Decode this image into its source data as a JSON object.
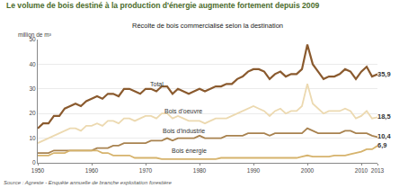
{
  "chart_data": {
    "type": "line",
    "title": "Le volume de bois destiné à la production d'énergie augmente fortement depuis 2009",
    "subtitle": "Récolte de bois commercialisé selon la destination",
    "ylabel": "million de m³",
    "source": "Source : Agreste - Enquête annuelle de branche exploitation forestière",
    "x": [
      1950,
      1951,
      1952,
      1953,
      1954,
      1955,
      1956,
      1957,
      1958,
      1959,
      1960,
      1961,
      1962,
      1963,
      1964,
      1965,
      1966,
      1967,
      1968,
      1969,
      1970,
      1971,
      1972,
      1973,
      1974,
      1975,
      1976,
      1977,
      1978,
      1979,
      1980,
      1981,
      1982,
      1983,
      1984,
      1985,
      1986,
      1987,
      1988,
      1989,
      1990,
      1991,
      1992,
      1993,
      1994,
      1995,
      1996,
      1997,
      1998,
      1999,
      2000,
      2001,
      2002,
      2003,
      2004,
      2005,
      2006,
      2007,
      2008,
      2009,
      2010,
      2011,
      2012,
      2013
    ],
    "series": [
      {
        "name": "Total",
        "color": "#8a5a2e",
        "values": [
          14,
          16,
          16,
          19,
          19,
          22,
          23,
          24,
          23,
          25,
          26,
          27,
          26,
          28,
          28,
          27,
          30,
          30,
          29,
          28,
          30,
          30,
          29,
          31,
          31,
          28,
          30,
          29,
          28,
          29,
          30,
          29,
          30,
          31,
          31,
          32,
          32,
          34,
          35,
          37,
          38,
          38,
          37,
          34,
          36,
          37,
          35,
          36,
          36,
          38,
          48,
          40,
          37,
          34,
          35,
          35,
          36,
          38,
          37,
          34,
          37,
          39,
          35,
          35.9
        ],
        "value_labels": [
          null,
          null,
          null,
          null,
          null,
          null,
          null,
          null,
          null,
          null,
          null,
          null,
          null,
          null,
          null,
          null,
          null,
          null,
          null,
          null,
          null,
          null,
          null,
          null,
          null,
          null,
          null,
          null,
          null,
          null,
          null,
          null,
          null,
          null,
          null,
          null,
          null,
          null,
          null,
          null,
          null,
          null,
          null,
          null,
          null,
          null,
          null,
          null,
          null,
          null,
          null,
          null,
          null,
          null,
          null,
          null,
          null,
          null,
          null,
          null,
          null,
          null,
          null,
          "35,9"
        ]
      },
      {
        "name": "Bois d'oeuvre",
        "color": "#ecd9b0",
        "values": [
          8,
          9,
          10,
          11,
          12,
          13,
          14,
          14,
          13,
          15,
          15,
          16,
          15,
          17,
          17,
          16,
          18,
          18,
          17,
          18,
          19,
          19,
          18,
          20,
          20,
          18,
          19,
          18,
          17,
          17,
          17,
          16,
          17,
          18,
          18,
          18,
          19,
          20,
          21,
          22,
          23,
          22,
          21,
          19,
          21,
          22,
          20,
          21,
          21,
          23,
          32,
          24,
          22,
          20,
          21,
          21,
          21,
          22,
          21,
          18,
          19,
          21,
          18,
          18.5
        ],
        "value_labels": [
          null,
          null,
          null,
          null,
          null,
          null,
          null,
          null,
          null,
          null,
          null,
          null,
          null,
          null,
          null,
          null,
          null,
          null,
          null,
          null,
          null,
          null,
          null,
          null,
          null,
          null,
          null,
          null,
          null,
          null,
          null,
          null,
          null,
          null,
          null,
          null,
          null,
          null,
          null,
          null,
          null,
          null,
          null,
          null,
          null,
          null,
          null,
          null,
          null,
          null,
          null,
          null,
          null,
          null,
          null,
          null,
          null,
          null,
          null,
          null,
          null,
          null,
          null,
          "18,5"
        ]
      },
      {
        "name": "Bois d'industrie",
        "color": "#a8824f",
        "values": [
          4,
          4,
          4,
          5,
          5,
          5,
          5,
          5,
          5,
          5,
          5,
          6,
          6,
          6,
          7,
          7,
          8,
          8,
          8,
          8,
          8,
          9,
          9,
          9,
          10,
          9,
          10,
          10,
          10,
          10,
          11,
          10,
          10,
          10,
          10,
          11,
          11,
          11,
          11,
          12,
          12,
          12,
          12,
          11,
          12,
          12,
          12,
          12,
          12,
          12,
          14,
          13,
          12,
          12,
          12,
          12,
          12,
          13,
          13,
          12,
          12,
          12,
          11,
          10.4
        ],
        "value_labels": [
          null,
          null,
          null,
          null,
          null,
          null,
          null,
          null,
          null,
          null,
          null,
          null,
          null,
          null,
          null,
          null,
          null,
          null,
          null,
          null,
          null,
          null,
          null,
          null,
          null,
          null,
          null,
          null,
          null,
          null,
          null,
          null,
          null,
          null,
          null,
          null,
          null,
          null,
          null,
          null,
          null,
          null,
          null,
          null,
          null,
          null,
          null,
          null,
          null,
          null,
          null,
          null,
          null,
          null,
          null,
          null,
          null,
          null,
          null,
          null,
          null,
          null,
          null,
          "10,4"
        ]
      },
      {
        "name": "Bois énergie",
        "color": "#d6b36c",
        "values": [
          3,
          3,
          3,
          4,
          4,
          4,
          5,
          5,
          5,
          5,
          5,
          5,
          4,
          4,
          3,
          3,
          3,
          3,
          2,
          2,
          2,
          2,
          2,
          1.5,
          1.5,
          1.5,
          1.5,
          1.5,
          1.5,
          1.5,
          1.5,
          1.5,
          1.5,
          1.5,
          2,
          2,
          2,
          2,
          2,
          2,
          2,
          2,
          2,
          2,
          2,
          2,
          2,
          2,
          2,
          2.5,
          3,
          2.5,
          2.5,
          2.5,
          2.5,
          3,
          3,
          3,
          3.5,
          4,
          4.5,
          5.5,
          5.5,
          6.9
        ],
        "value_labels": [
          null,
          null,
          null,
          null,
          null,
          null,
          null,
          null,
          null,
          null,
          null,
          null,
          null,
          null,
          null,
          null,
          null,
          null,
          null,
          null,
          null,
          null,
          null,
          null,
          null,
          null,
          null,
          null,
          null,
          null,
          null,
          null,
          null,
          null,
          null,
          null,
          null,
          null,
          null,
          null,
          null,
          null,
          null,
          null,
          null,
          null,
          null,
          null,
          null,
          null,
          null,
          null,
          null,
          null,
          null,
          null,
          null,
          null,
          null,
          null,
          null,
          null,
          null,
          "6,9"
        ]
      }
    ],
    "xlim": [
      1950,
      2013
    ],
    "xticks": [
      1950,
      1960,
      1970,
      1980,
      1990,
      2000,
      2010,
      2013
    ],
    "ylim": [
      0,
      50
    ],
    "yticks": [
      0,
      10,
      20,
      30,
      40,
      50
    ],
    "grid": true,
    "data_labels": true
  }
}
